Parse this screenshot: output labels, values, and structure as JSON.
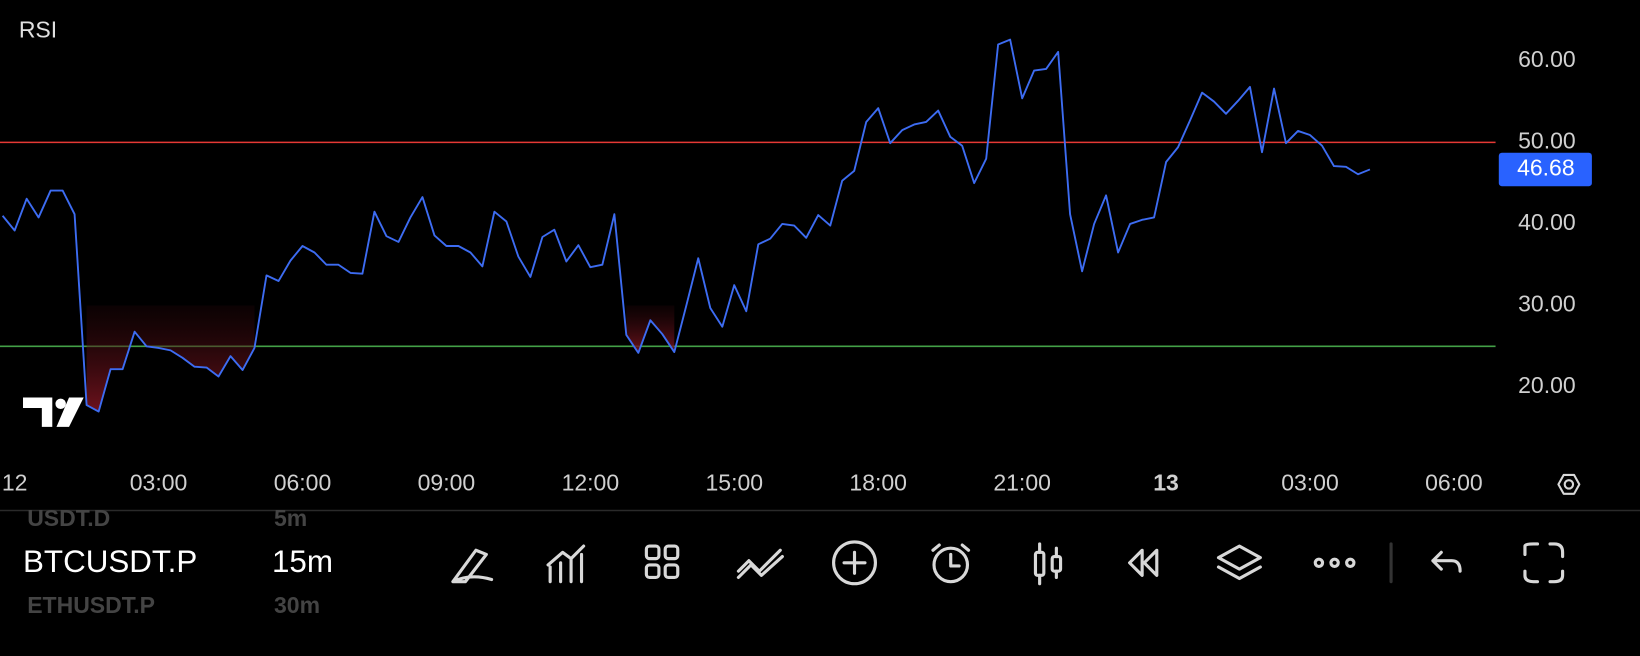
{
  "chart_data": {
    "type": "line",
    "title": "RSI",
    "x": [
      -0.25,
      0,
      0.25,
      0.5,
      0.75,
      1,
      1.25,
      1.5,
      1.75,
      2,
      2.25,
      2.5,
      2.75,
      3,
      3.25,
      3.5,
      3.75,
      4,
      4.25,
      4.5,
      4.75,
      5,
      5.25,
      5.5,
      5.75,
      6,
      6.25,
      6.5,
      6.75,
      7,
      7.25,
      7.5,
      7.75,
      8,
      8.25,
      8.5,
      8.75,
      9,
      9.25,
      9.5,
      9.75,
      10,
      10.25,
      10.5,
      10.75,
      11,
      11.25,
      11.5,
      11.75,
      12,
      12.25,
      12.5,
      12.75,
      13,
      13.25,
      13.5,
      13.75,
      14,
      14.25,
      14.5,
      14.75,
      15,
      15.25,
      15.5,
      15.75,
      16,
      16.25,
      16.5,
      16.75,
      17,
      17.25,
      17.5,
      17.75,
      18,
      18.25,
      18.5,
      18.75,
      19,
      19.25,
      19.5,
      19.75,
      20,
      20.25,
      20.5,
      20.75,
      21,
      21.25,
      21.5,
      21.75,
      22,
      22.25,
      22.5,
      22.75,
      23,
      23.25,
      23.5,
      23.75,
      24,
      24.25,
      24.5,
      24.75,
      25,
      25.25,
      25.5,
      25.75,
      26,
      26.25,
      26.5,
      26.75,
      27,
      27.25,
      27.5,
      27.75,
      28,
      28.25
    ],
    "series": [
      {
        "name": "RSI",
        "color": "#3d6cf2",
        "values": [
          41.0,
          39.2,
          43.1,
          40.8,
          44.1,
          44.1,
          41.2,
          17.8,
          17.0,
          22.2,
          22.2,
          26.8,
          25.0,
          24.8,
          24.5,
          23.6,
          22.5,
          22.4,
          21.3,
          23.8,
          22.1,
          24.8,
          33.7,
          33.0,
          35.5,
          37.3,
          36.5,
          35.0,
          35.0,
          34.0,
          33.9,
          41.5,
          38.5,
          37.8,
          40.8,
          43.3,
          38.6,
          37.3,
          37.3,
          36.5,
          34.8,
          41.5,
          40.3,
          36.0,
          33.5,
          38.4,
          39.3,
          35.4,
          37.4,
          34.7,
          35.0,
          41.2,
          26.4,
          24.2,
          28.2,
          26.5,
          24.3,
          30.0,
          35.8,
          29.7,
          27.4,
          32.5,
          29.3,
          37.5,
          38.2,
          40.0,
          39.8,
          38.3,
          41.1,
          39.8,
          45.3,
          46.5,
          52.5,
          54.2,
          49.9,
          51.5,
          52.2,
          52.5,
          53.9,
          50.7,
          49.6,
          45.0,
          48.0,
          62.0,
          62.6,
          55.4,
          58.8,
          59.0,
          61.1,
          41.2,
          34.2,
          40.0,
          43.5,
          36.5,
          40.0,
          40.5,
          40.8,
          47.6,
          49.4,
          52.7,
          56.1,
          55.0,
          53.5,
          55.1,
          56.8,
          48.8,
          56.6,
          49.9,
          51.4,
          50.9,
          49.6,
          47.1,
          47.0,
          46.1,
          46.68
        ]
      }
    ],
    "xlim": [
      -0.305,
      30.87
    ],
    "xticks": [
      {
        "value": 0,
        "label": "12"
      },
      {
        "value": 3,
        "label": "03:00"
      },
      {
        "value": 6,
        "label": "06:00"
      },
      {
        "value": 9,
        "label": "09:00"
      },
      {
        "value": 12,
        "label": "12:00"
      },
      {
        "value": 15,
        "label": "15:00"
      },
      {
        "value": 18,
        "label": "18:00"
      },
      {
        "value": 21,
        "label": "21:00"
      },
      {
        "value": 24,
        "label": "13"
      },
      {
        "value": 27,
        "label": "03:00"
      },
      {
        "value": 30,
        "label": "06:00"
      }
    ],
    "ylim": [
      11.03,
      67.44
    ],
    "yticks": [
      {
        "value": 20,
        "label": "20.00"
      },
      {
        "value": 30,
        "label": "30.00"
      },
      {
        "value": 40,
        "label": "40.00"
      },
      {
        "value": 50,
        "label": "50.00"
      },
      {
        "value": 60,
        "label": "60.00"
      }
    ],
    "hlines": [
      {
        "value": 50,
        "color": "#e53935"
      },
      {
        "value": 25,
        "color": "#43a047"
      }
    ]
  },
  "toolbar": {
    "symbol": "BTCUSDT.P",
    "interval": "15m",
    "prev_symbol": "USDT.D",
    "prev_interval": "5m",
    "next_symbol": "ETHUSDT.P",
    "next_interval": "30m"
  }
}
